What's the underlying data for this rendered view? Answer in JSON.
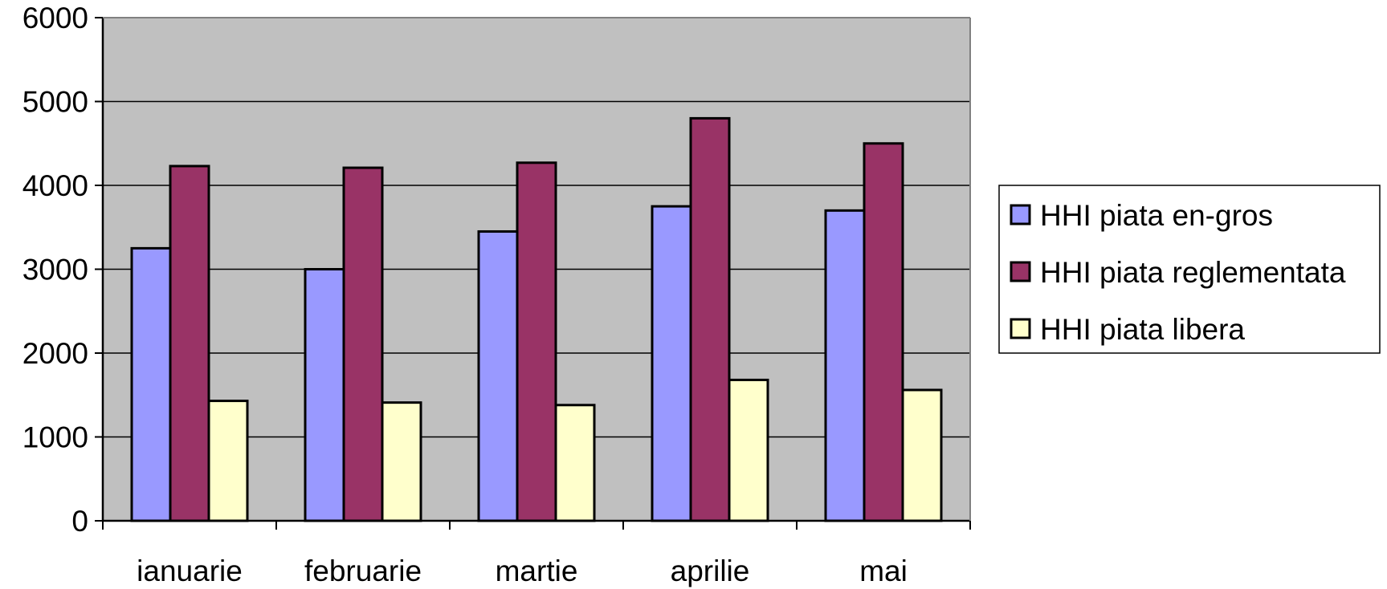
{
  "chart_data": {
    "type": "bar",
    "title": "",
    "xlabel": "",
    "ylabel": "",
    "categories": [
      "ianuarie",
      "februarie",
      "martie",
      "aprilie",
      "mai"
    ],
    "series": [
      {
        "name": "HHI piata en-gros",
        "color": "#9999FF",
        "values": [
          3250,
          3000,
          3450,
          3750,
          3700
        ]
      },
      {
        "name": "HHI piata reglementata",
        "color": "#993366",
        "values": [
          4230,
          4210,
          4270,
          4800,
          4500
        ]
      },
      {
        "name": "HHI piata libera",
        "color": "#FFFFCC",
        "values": [
          1430,
          1410,
          1380,
          1680,
          1560
        ]
      }
    ],
    "ylim": [
      0,
      6000
    ],
    "yticks": [
      "0",
      "1000",
      "2000",
      "3000",
      "4000",
      "5000",
      "6000"
    ],
    "grid": true,
    "plot_background": "#C0C0C0",
    "legend_position": "right"
  }
}
